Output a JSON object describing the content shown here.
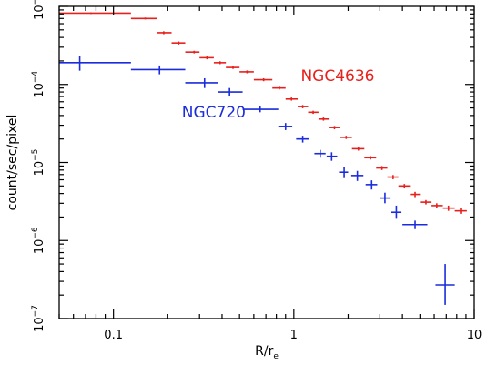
{
  "chart_data": {
    "type": "scatter",
    "xscale": "log",
    "yscale": "log",
    "xlim": [
      0.05,
      10
    ],
    "ylim": [
      1e-07,
      0.001
    ],
    "grid": false,
    "legend": "none",
    "xlabel": {
      "main": "R/r",
      "sub": "e"
    },
    "ylabel": "count/sec/pixel",
    "xticks": [
      {
        "value": 0.1,
        "label": "0.1"
      },
      {
        "value": 1,
        "label": "1"
      },
      {
        "value": 10,
        "label": "10"
      }
    ],
    "yticks": [
      {
        "value": 1e-07,
        "base": "10",
        "exp": "−7"
      },
      {
        "value": 1e-06,
        "base": "10",
        "exp": "−6"
      },
      {
        "value": 1e-05,
        "base": "10",
        "exp": "−5"
      },
      {
        "value": 0.0001,
        "base": "10",
        "exp": "−4"
      },
      {
        "value": 0.001,
        "base": "10",
        "exp": "−3"
      }
    ],
    "series": [
      {
        "name": "NGC4636",
        "color": "#e8201c",
        "points": [
          {
            "x": 0.075,
            "y": 0.00082,
            "xlo": 0.05,
            "xhi": 0.125,
            "ylo": 0.0008,
            "yhi": 0.00084
          },
          {
            "x": 0.15,
            "y": 0.0007,
            "xlo": 0.125,
            "xhi": 0.175,
            "ylo": 0.00068,
            "yhi": 0.00072
          },
          {
            "x": 0.19,
            "y": 0.00046,
            "xlo": 0.175,
            "xhi": 0.21,
            "ylo": 0.00044,
            "yhi": 0.00048
          },
          {
            "x": 0.23,
            "y": 0.00034,
            "xlo": 0.21,
            "xhi": 0.25,
            "ylo": 0.000325,
            "yhi": 0.000355
          },
          {
            "x": 0.28,
            "y": 0.00026,
            "xlo": 0.25,
            "xhi": 0.3,
            "ylo": 0.00025,
            "yhi": 0.00027
          },
          {
            "x": 0.33,
            "y": 0.00022,
            "xlo": 0.3,
            "xhi": 0.36,
            "ylo": 0.00021,
            "yhi": 0.00023
          },
          {
            "x": 0.39,
            "y": 0.00019,
            "xlo": 0.36,
            "xhi": 0.42,
            "ylo": 0.000182,
            "yhi": 0.000198
          },
          {
            "x": 0.46,
            "y": 0.000165,
            "xlo": 0.42,
            "xhi": 0.5,
            "ylo": 0.000158,
            "yhi": 0.000172
          },
          {
            "x": 0.55,
            "y": 0.000145,
            "xlo": 0.5,
            "xhi": 0.6,
            "ylo": 0.000139,
            "yhi": 0.000151
          },
          {
            "x": 0.68,
            "y": 0.000115,
            "xlo": 0.6,
            "xhi": 0.76,
            "ylo": 0.00011,
            "yhi": 0.00012
          },
          {
            "x": 0.83,
            "y": 9e-05,
            "xlo": 0.76,
            "xhi": 0.9,
            "ylo": 8.6e-05,
            "yhi": 9.4e-05
          },
          {
            "x": 0.97,
            "y": 6.5e-05,
            "xlo": 0.9,
            "xhi": 1.05,
            "ylo": 6.2e-05,
            "yhi": 6.8e-05
          },
          {
            "x": 1.12,
            "y": 5.2e-05,
            "xlo": 1.05,
            "xhi": 1.2,
            "ylo": 4.95e-05,
            "yhi": 5.45e-05
          },
          {
            "x": 1.28,
            "y": 4.4e-05,
            "xlo": 1.2,
            "xhi": 1.37,
            "ylo": 4.2e-05,
            "yhi": 4.6e-05
          },
          {
            "x": 1.46,
            "y": 3.6e-05,
            "xlo": 1.37,
            "xhi": 1.56,
            "ylo": 3.43e-05,
            "yhi": 3.77e-05
          },
          {
            "x": 1.68,
            "y": 2.8e-05,
            "xlo": 1.56,
            "xhi": 1.8,
            "ylo": 2.66e-05,
            "yhi": 2.94e-05
          },
          {
            "x": 1.95,
            "y": 2.1e-05,
            "xlo": 1.8,
            "xhi": 2.1,
            "ylo": 2e-05,
            "yhi": 2.2e-05
          },
          {
            "x": 2.28,
            "y": 1.5e-05,
            "xlo": 2.1,
            "xhi": 2.46,
            "ylo": 1.42e-05,
            "yhi": 1.58e-05
          },
          {
            "x": 2.66,
            "y": 1.15e-05,
            "xlo": 2.46,
            "xhi": 2.86,
            "ylo": 1.09e-05,
            "yhi": 1.21e-05
          },
          {
            "x": 3.08,
            "y": 8.5e-06,
            "xlo": 2.86,
            "xhi": 3.3,
            "ylo": 8e-06,
            "yhi": 9e-06
          },
          {
            "x": 3.55,
            "y": 6.5e-06,
            "xlo": 3.3,
            "xhi": 3.8,
            "ylo": 6.1e-06,
            "yhi": 6.9e-06
          },
          {
            "x": 4.1,
            "y": 5e-06,
            "xlo": 3.8,
            "xhi": 4.4,
            "ylo": 4.7e-06,
            "yhi": 5.3e-06
          },
          {
            "x": 4.7,
            "y": 3.9e-06,
            "xlo": 4.4,
            "xhi": 5.0,
            "ylo": 3.6e-06,
            "yhi": 4.2e-06
          },
          {
            "x": 5.4,
            "y": 3.1e-06,
            "xlo": 5.0,
            "xhi": 5.8,
            "ylo": 2.9e-06,
            "yhi": 3.3e-06
          },
          {
            "x": 6.2,
            "y": 2.8e-06,
            "xlo": 5.8,
            "xhi": 6.7,
            "ylo": 2.6e-06,
            "yhi": 3e-06
          },
          {
            "x": 7.2,
            "y": 2.6e-06,
            "xlo": 6.7,
            "xhi": 7.8,
            "ylo": 2.4e-06,
            "yhi": 2.8e-06
          },
          {
            "x": 8.4,
            "y": 2.4e-06,
            "xlo": 7.8,
            "xhi": 9.1,
            "ylo": 2.2e-06,
            "yhi": 2.6e-06
          }
        ]
      },
      {
        "name": "NGC720",
        "color": "#1a2cdc",
        "points": [
          {
            "x": 0.065,
            "y": 0.00019,
            "xlo": 0.05,
            "xhi": 0.125,
            "ylo": 0.00015,
            "yhi": 0.00023
          },
          {
            "x": 0.18,
            "y": 0.000155,
            "xlo": 0.125,
            "xhi": 0.25,
            "ylo": 0.000135,
            "yhi": 0.000175
          },
          {
            "x": 0.32,
            "y": 0.000105,
            "xlo": 0.25,
            "xhi": 0.38,
            "ylo": 9e-05,
            "yhi": 0.00012
          },
          {
            "x": 0.44,
            "y": 8e-05,
            "xlo": 0.38,
            "xhi": 0.52,
            "ylo": 7e-05,
            "yhi": 9e-05
          },
          {
            "x": 0.65,
            "y": 4.8e-05,
            "xlo": 0.52,
            "xhi": 0.82,
            "ylo": 4.4e-05,
            "yhi": 5.3e-05
          },
          {
            "x": 0.9,
            "y": 2.9e-05,
            "xlo": 0.82,
            "xhi": 0.98,
            "ylo": 2.6e-05,
            "yhi": 3.2e-05
          },
          {
            "x": 1.12,
            "y": 2e-05,
            "xlo": 1.03,
            "xhi": 1.22,
            "ylo": 1.8e-05,
            "yhi": 2.2e-05
          },
          {
            "x": 1.4,
            "y": 1.3e-05,
            "xlo": 1.3,
            "xhi": 1.5,
            "ylo": 1.15e-05,
            "yhi": 1.45e-05
          },
          {
            "x": 1.62,
            "y": 1.2e-05,
            "xlo": 1.52,
            "xhi": 1.74,
            "ylo": 1.05e-05,
            "yhi": 1.35e-05
          },
          {
            "x": 1.9,
            "y": 7.5e-06,
            "xlo": 1.78,
            "xhi": 2.0,
            "ylo": 6.3e-06,
            "yhi": 8.7e-06
          },
          {
            "x": 2.25,
            "y": 6.8e-06,
            "xlo": 2.08,
            "xhi": 2.43,
            "ylo": 5.8e-06,
            "yhi": 7.8e-06
          },
          {
            "x": 2.7,
            "y": 5.2e-06,
            "xlo": 2.5,
            "xhi": 2.9,
            "ylo": 4.5e-06,
            "yhi": 5.9e-06
          },
          {
            "x": 3.2,
            "y": 3.5e-06,
            "xlo": 3.0,
            "xhi": 3.4,
            "ylo": 3e-06,
            "yhi": 4.1e-06
          },
          {
            "x": 3.7,
            "y": 2.3e-06,
            "xlo": 3.45,
            "xhi": 3.95,
            "ylo": 1.9e-06,
            "yhi": 2.8e-06
          },
          {
            "x": 4.7,
            "y": 1.6e-06,
            "xlo": 4.0,
            "xhi": 5.5,
            "ylo": 1.4e-06,
            "yhi": 1.8e-06
          },
          {
            "x": 6.9,
            "y": 2.7e-07,
            "xlo": 6.1,
            "xhi": 7.8,
            "ylo": 1.5e-07,
            "yhi": 5e-07
          }
        ]
      }
    ],
    "annotations": [
      {
        "text": "NGC4636",
        "series": 0,
        "x": 1.75,
        "y": 0.00011
      },
      {
        "text": "NGC720",
        "series": 1,
        "x": 0.36,
        "y": 3.8e-05
      }
    ]
  }
}
